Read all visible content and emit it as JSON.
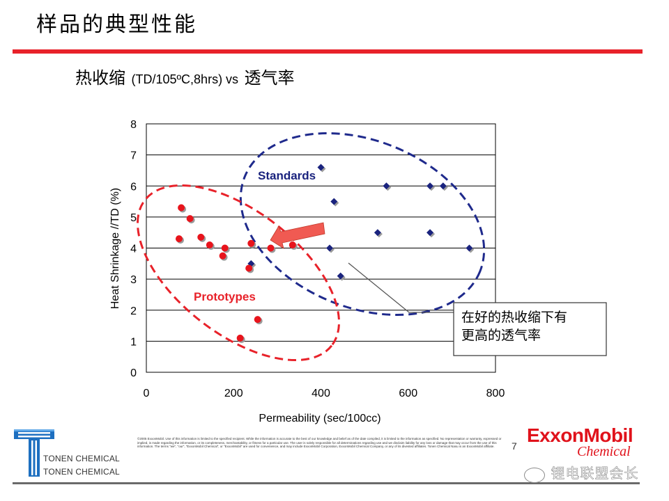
{
  "page": {
    "title": "样品的典型性能",
    "subtitle_cn1": "热收缩",
    "subtitle_en": "(TD/105ºC,8hrs) vs",
    "subtitle_cn2": "透气率",
    "page_number": "7",
    "tonen_line1": "TONEN CHEMICAL",
    "tonen_line2": "TONEN CHEMICAL",
    "exxon_logo_text": "ExxonMobil",
    "exxon_chemical": "Chemical",
    "watermark": "锂电联盟会长",
    "disclaimer": "©2005 ExxonMobil. Use of this information is limited to the specified recipient. While the information is accurate to the best of our knowledge and belief as of the date compiled, it is limited to the information as specified. No representation or warranty, expressed or implied, is made regarding the information, or its completeness, merchantability, or fitness for a particular use. The user is solely responsible for all determinations regarding use and we disclaim liability for any loss or damage that may occur from the use of this information. The terms \"we\", \"our\", \"ExxonMobil Chemical\", or \"ExxonMobil\" are used for convenience, and may include ExxonMobil Corporation, ExxonMobil Chemical Company, or any of its divested affiliates. Tonen Chemical Nasu is an ExxonMobil affiliate.",
    "colors": {
      "accent_red": "#e8222a",
      "series_red": "#e8141c",
      "series_blue": "#1a237e",
      "ellipse_blue": "#1f2a8c"
    }
  },
  "chart_data": {
    "type": "scatter",
    "title": "",
    "xlabel": "Permeability (sec/100cc)",
    "ylabel": "Heat Shrinkage //TD (%)",
    "xlim": [
      0,
      800
    ],
    "ylim": [
      0,
      8
    ],
    "xticks": [
      0,
      200,
      400,
      600,
      800
    ],
    "yticks": [
      0,
      1,
      2,
      3,
      4,
      5,
      6,
      7,
      8
    ],
    "grid": "horizontal",
    "series": [
      {
        "name": "Standards",
        "marker": "diamond",
        "color": "#1a237e",
        "points": [
          [
            240,
            3.5
          ],
          [
            400,
            6.6
          ],
          [
            420,
            4.0
          ],
          [
            430,
            5.5
          ],
          [
            445,
            3.1
          ],
          [
            530,
            4.5
          ],
          [
            550,
            6.0
          ],
          [
            650,
            6.0
          ],
          [
            650,
            4.5
          ],
          [
            680,
            6.0
          ],
          [
            740,
            4.0
          ]
        ]
      },
      {
        "name": "Prototypes",
        "marker": "circle",
        "color": "#e8141c",
        "points": [
          [
            75,
            4.3
          ],
          [
            80,
            5.3
          ],
          [
            100,
            4.95
          ],
          [
            125,
            4.35
          ],
          [
            145,
            4.1
          ],
          [
            175,
            3.75
          ],
          [
            180,
            4.0
          ],
          [
            235,
            3.35
          ],
          [
            240,
            4.15
          ],
          [
            255,
            1.7
          ],
          [
            215,
            1.1
          ],
          [
            285,
            4.0
          ],
          [
            335,
            4.1
          ]
        ]
      }
    ],
    "annotations": {
      "standards_label": "Standards",
      "prototypes_label": "Prototypes",
      "callout_line1": "在好的热收缩下有",
      "callout_line2": "更高的透气率"
    }
  }
}
